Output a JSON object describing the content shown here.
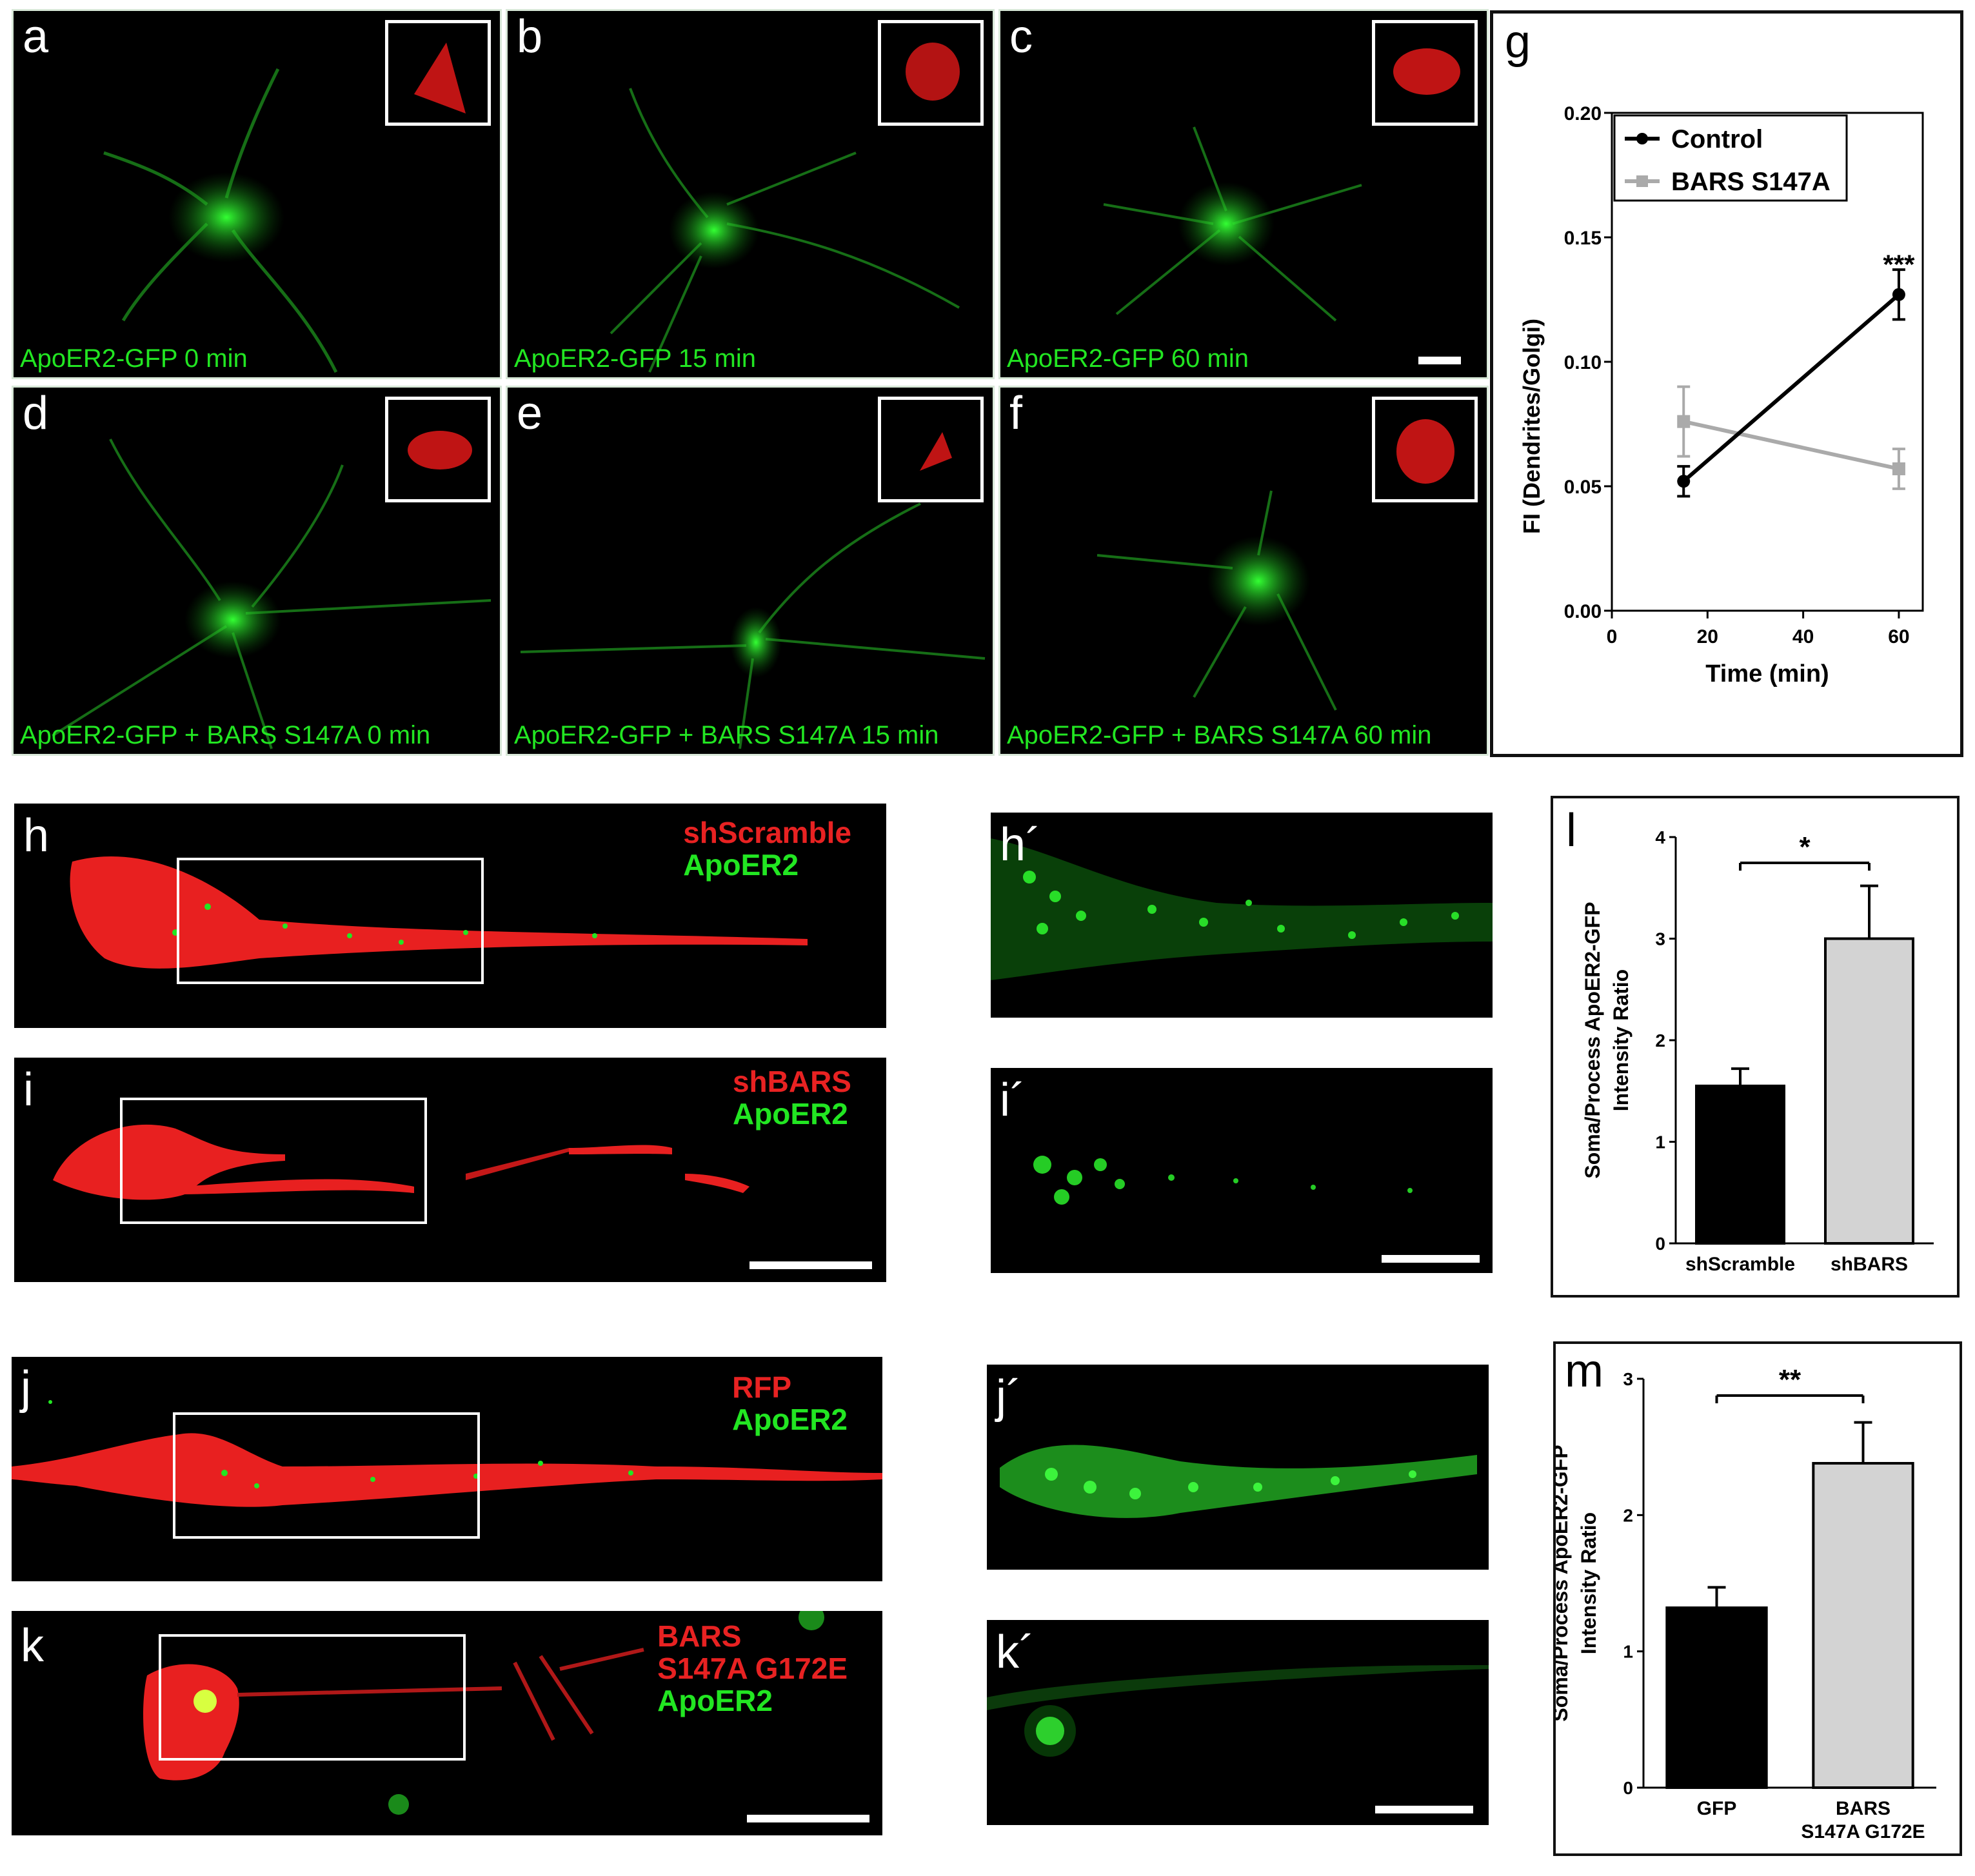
{
  "panels_top": [
    {
      "letter": "a",
      "caption": "ApoER2-GFP 0 min"
    },
    {
      "letter": "b",
      "caption": "ApoER2-GFP 15 min"
    },
    {
      "letter": "c",
      "caption": "ApoER2-GFP 60 min"
    },
    {
      "letter": "d",
      "caption": "ApoER2-GFP + BARS S147A  0 min"
    },
    {
      "letter": "e",
      "caption": "ApoER2-GFP + BARS S147A  15 min"
    },
    {
      "letter": "f",
      "caption": "ApoER2-GFP + BARS S147A  60 min"
    }
  ],
  "panels_mid": [
    {
      "letter": "h",
      "legend": [
        "shScramble",
        "ApoER2"
      ],
      "legend_colors": [
        "red",
        "green"
      ]
    },
    {
      "letter": "i",
      "legend": [
        "shBARS",
        "ApoER2"
      ],
      "legend_colors": [
        "red",
        "green"
      ]
    },
    {
      "letter": "j",
      "legend": [
        "RFP",
        "ApoER2"
      ],
      "legend_colors": [
        "red",
        "green"
      ]
    },
    {
      "letter": "k",
      "legend": [
        "BARS",
        "S147A G172E",
        "ApoER2"
      ],
      "legend_colors": [
        "red",
        "red",
        "green"
      ]
    }
  ],
  "panels_zoom": [
    {
      "letter": "h´"
    },
    {
      "letter": "i´"
    },
    {
      "letter": "j´"
    },
    {
      "letter": "k´"
    }
  ],
  "colors": {
    "green": "#22e622",
    "red": "#e82222",
    "control": "#000000",
    "bars": "#aaaaaa",
    "bar_light": "#d3d3d3"
  },
  "chart_data": [
    {
      "panel": "g",
      "type": "line",
      "xlabel": "Time (min)",
      "ylabel": "FI (Dendrites/Golgi)",
      "xlim": [
        0,
        65
      ],
      "ylim": [
        0,
        0.2
      ],
      "xticks": [
        0,
        20,
        40,
        60
      ],
      "yticks": [
        "0.00",
        "0.05",
        "0.10",
        "0.15",
        "0.20"
      ],
      "series": [
        {
          "name": "Control",
          "x": [
            15,
            60
          ],
          "y": [
            0.052,
            0.127
          ],
          "err": [
            0.006,
            0.01
          ],
          "color": "#000000",
          "marker": "circle"
        },
        {
          "name": "BARS S147A",
          "x": [
            15,
            60
          ],
          "y": [
            0.076,
            0.057
          ],
          "err": [
            0.014,
            0.008
          ],
          "color": "#aaaaaa",
          "marker": "square"
        }
      ],
      "annotations": [
        {
          "text": "***",
          "x": 60,
          "y": 0.14
        }
      ],
      "legend_position": "top"
    },
    {
      "panel": "l",
      "type": "bar",
      "categories": [
        "shScramble",
        "shBARS"
      ],
      "values": [
        1.55,
        3.0
      ],
      "errors": [
        0.17,
        0.52
      ],
      "colors": [
        "#000000",
        "#d3d3d3"
      ],
      "ylabel_lines": [
        "Soma/Process ApoER2-GFP",
        "Intensity Ratio"
      ],
      "ylim": [
        0,
        4
      ],
      "yticks": [
        "0",
        "1",
        "2",
        "3",
        "4"
      ],
      "significance": "*"
    },
    {
      "panel": "m",
      "type": "bar",
      "categories": [
        "GFP",
        [
          "BARS",
          "S147A G172E"
        ]
      ],
      "values": [
        1.32,
        2.38
      ],
      "errors": [
        0.15,
        0.3
      ],
      "colors": [
        "#000000",
        "#d3d3d3"
      ],
      "ylabel_lines": [
        "Soma/Process ApoER2-GFP",
        "Intensity Ratio"
      ],
      "ylim": [
        0,
        3
      ],
      "yticks": [
        "0",
        "1",
        "2",
        "3"
      ],
      "significance": "**"
    }
  ]
}
